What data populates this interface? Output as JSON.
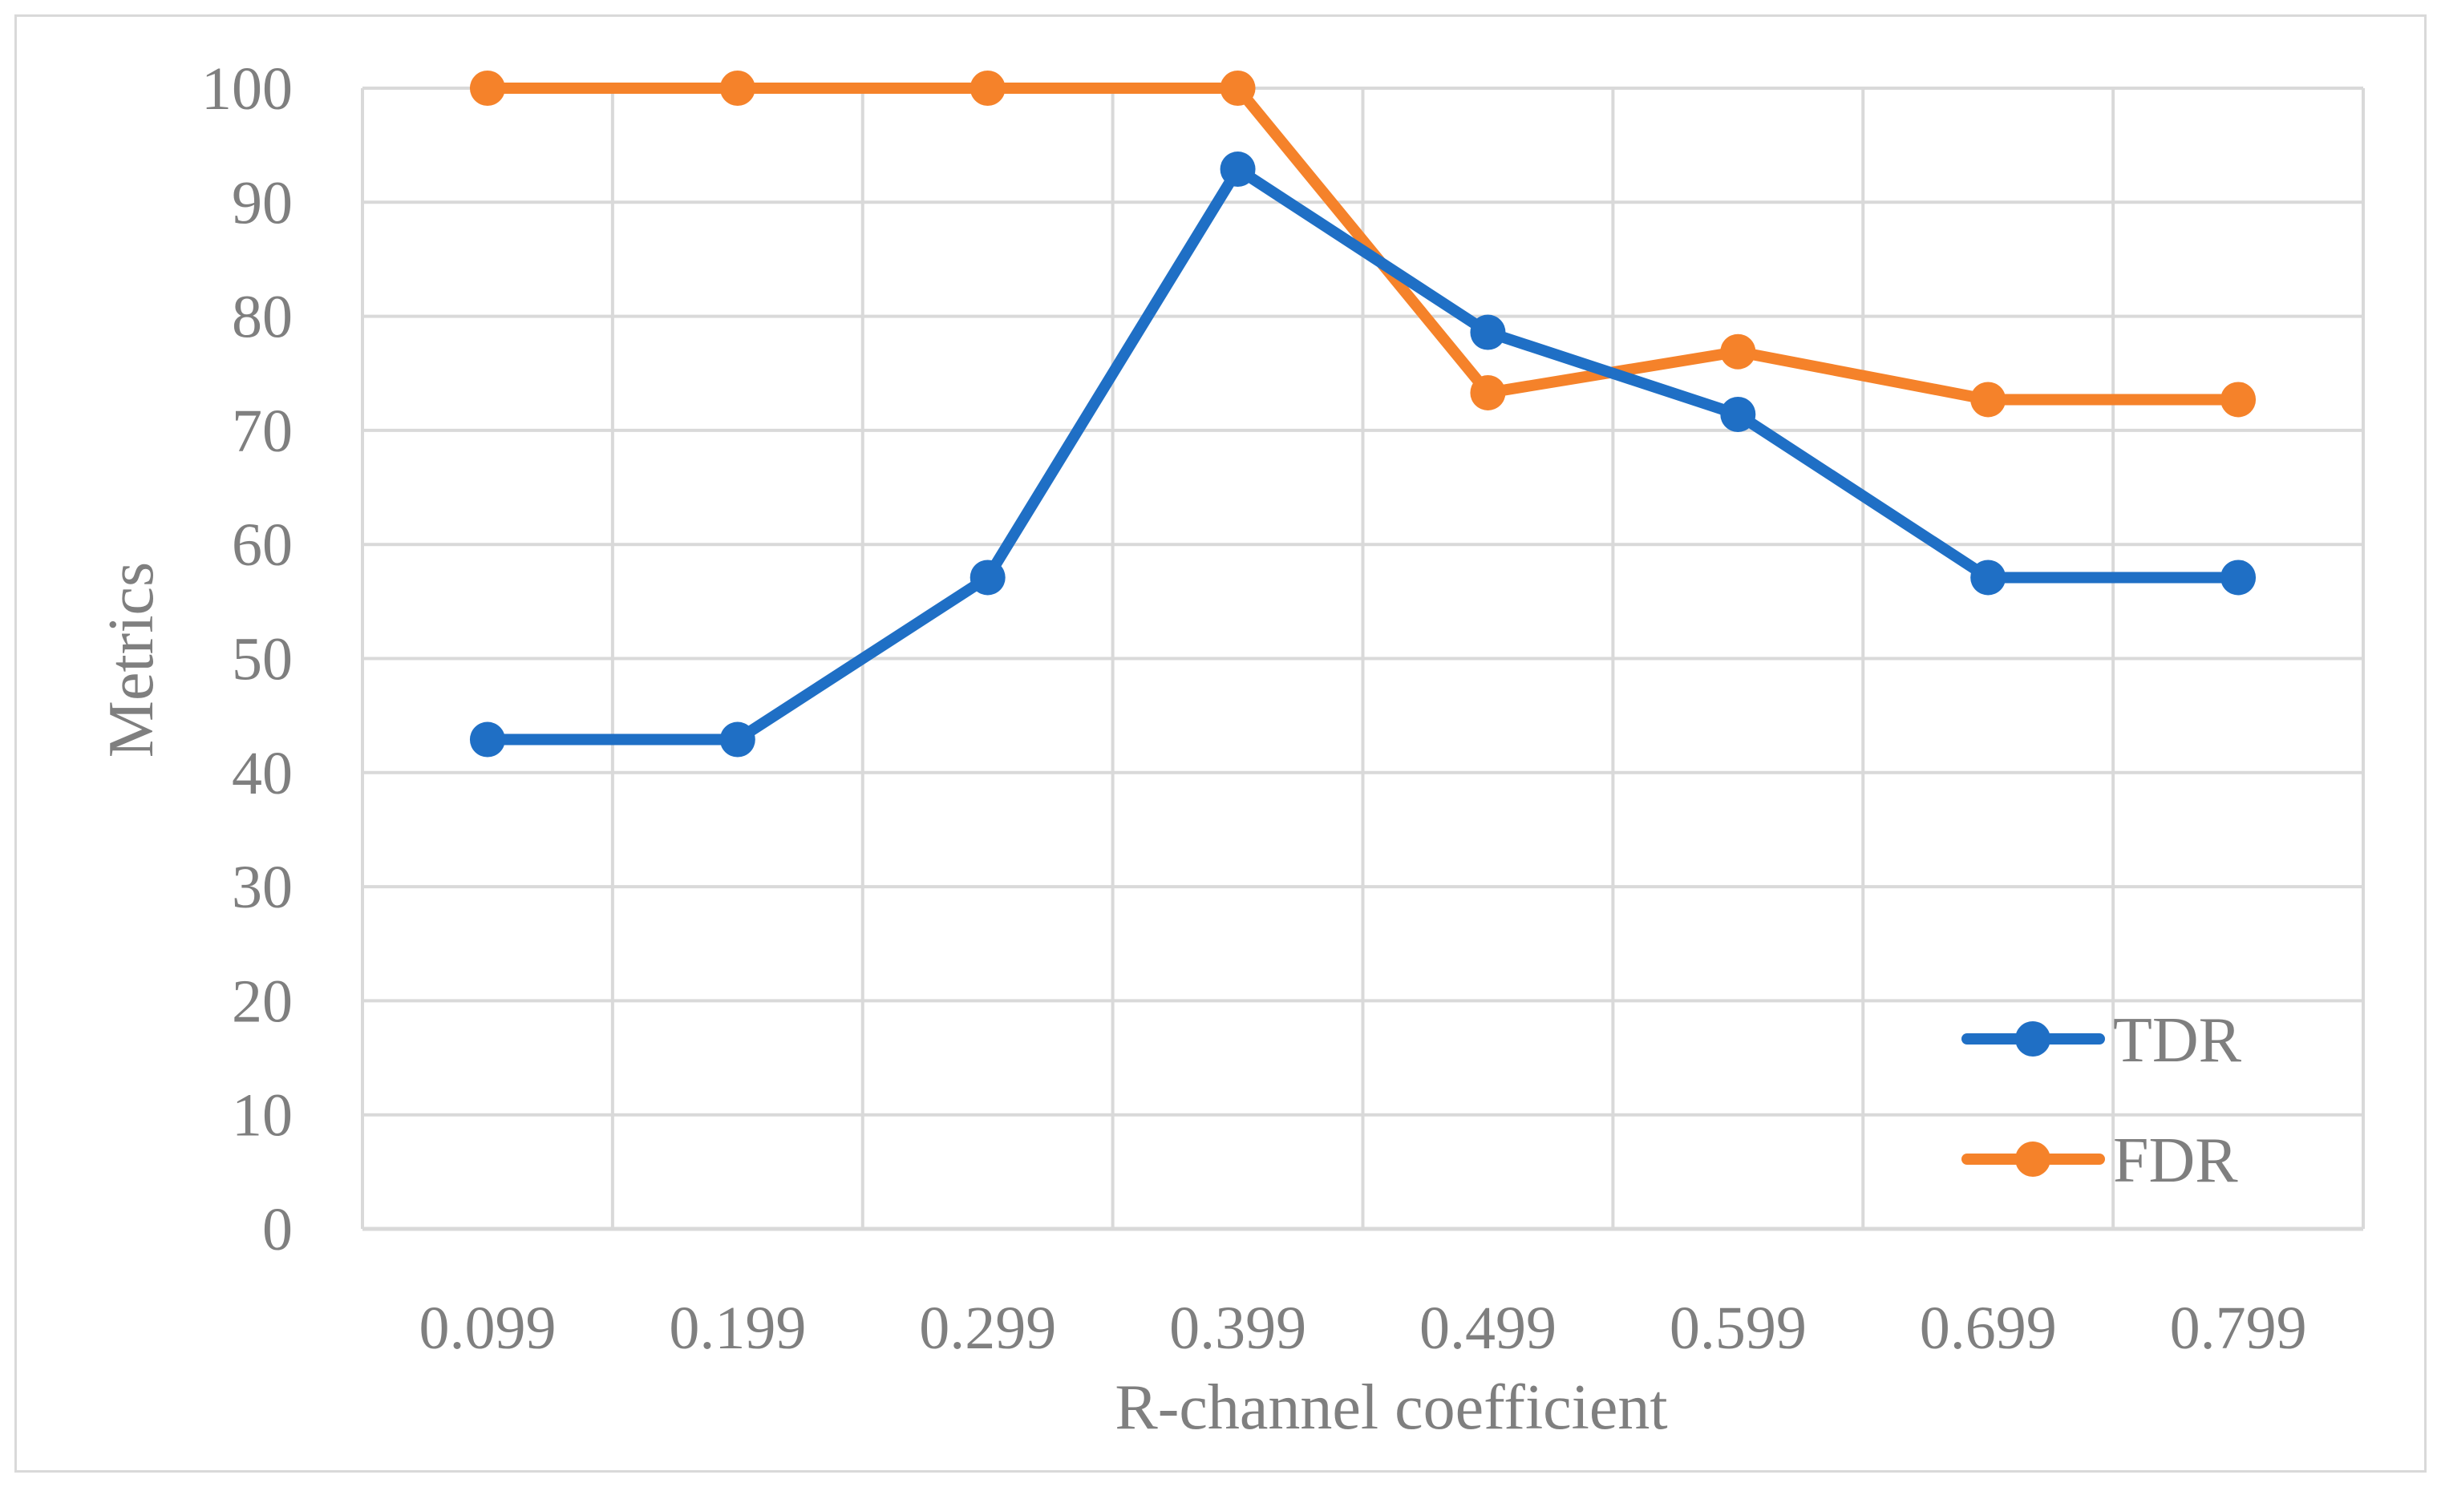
{
  "chart_data": {
    "type": "line",
    "title": "",
    "xlabel": "R-channel coefficient",
    "ylabel": "Metrics",
    "categories": [
      "0.099",
      "0.199",
      "0.299",
      "0.399",
      "0.499",
      "0.599",
      "0.699",
      "0.799"
    ],
    "ylim": [
      0,
      100
    ],
    "yticks": [
      "0",
      "10",
      "20",
      "30",
      "40",
      "50",
      "60",
      "70",
      "80",
      "90",
      "100"
    ],
    "grid": true,
    "legend_position": "bottom-right",
    "series": [
      {
        "name": "TDR",
        "color": "#1f6fc5",
        "values": [
          42.9,
          42.9,
          57.1,
          92.9,
          78.6,
          71.4,
          57.1,
          57.1
        ]
      },
      {
        "name": "FDR",
        "color": "#f5822a",
        "values": [
          100,
          100,
          100,
          100,
          73.3,
          76.9,
          72.7,
          72.7
        ]
      }
    ]
  }
}
